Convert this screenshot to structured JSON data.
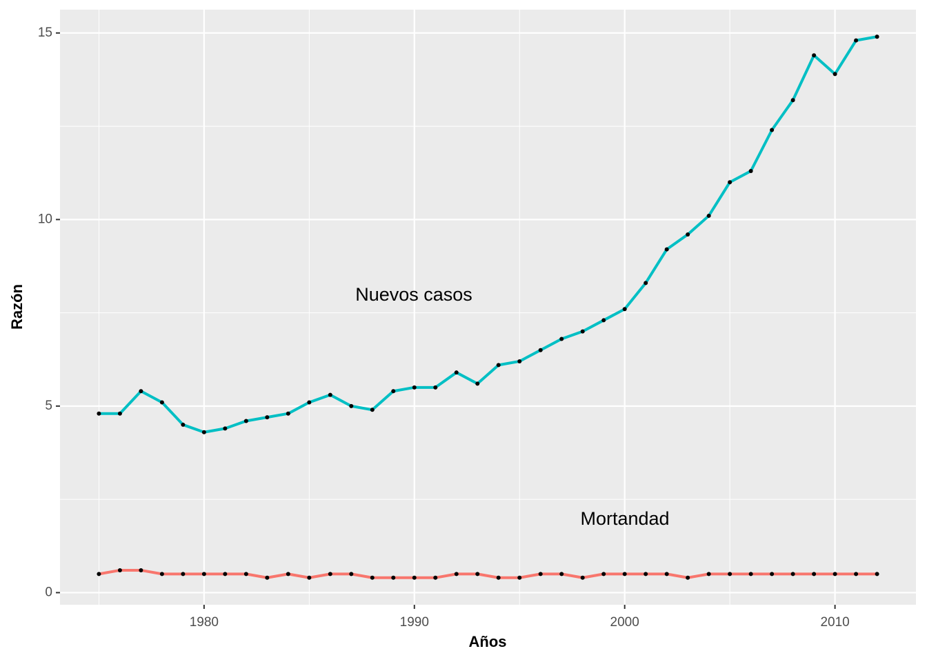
{
  "chart_data": {
    "type": "line",
    "x_label": "Años",
    "y_label": "Razón",
    "x": [
      1975,
      1976,
      1977,
      1978,
      1979,
      1980,
      1981,
      1982,
      1983,
      1984,
      1985,
      1986,
      1987,
      1988,
      1989,
      1990,
      1991,
      1992,
      1993,
      1994,
      1995,
      1996,
      1997,
      1998,
      1999,
      2000,
      2001,
      2002,
      2003,
      2004,
      2005,
      2006,
      2007,
      2008,
      2009,
      2010,
      2011,
      2012
    ],
    "series": [
      {
        "name": "Mortandad",
        "color": "#F8766D",
        "values": [
          0.5,
          0.6,
          0.6,
          0.5,
          0.5,
          0.5,
          0.5,
          0.5,
          0.4,
          0.5,
          0.4,
          0.5,
          0.5,
          0.4,
          0.4,
          0.4,
          0.4,
          0.5,
          0.5,
          0.4,
          0.4,
          0.5,
          0.5,
          0.4,
          0.5,
          0.5,
          0.5,
          0.5,
          0.4,
          0.5,
          0.5,
          0.5,
          0.5,
          0.5,
          0.5,
          0.5,
          0.5,
          0.5
        ]
      },
      {
        "name": "Nuevos casos",
        "color": "#00BFC4",
        "values": [
          4.8,
          4.8,
          5.4,
          5.1,
          4.5,
          4.3,
          4.4,
          4.6,
          4.7,
          4.8,
          5.1,
          5.3,
          5.0,
          4.9,
          5.4,
          5.5,
          5.5,
          5.9,
          5.6,
          6.1,
          6.2,
          6.5,
          6.8,
          7.0,
          7.3,
          7.6,
          8.3,
          9.2,
          9.6,
          10.1,
          11.0,
          11.3,
          12.4,
          13.2,
          14.4,
          13.9,
          14.8,
          14.9
        ]
      }
    ],
    "xlim": [
      1973.15,
      2013.85
    ],
    "xticks": [
      1980,
      1990,
      2000,
      2010
    ],
    "ylim": [
      -0.325,
      15.625
    ],
    "yticks": [
      0,
      5,
      10,
      15
    ],
    "grid": true,
    "point_color": "#000000",
    "panel_color": "#EBEBEB"
  }
}
